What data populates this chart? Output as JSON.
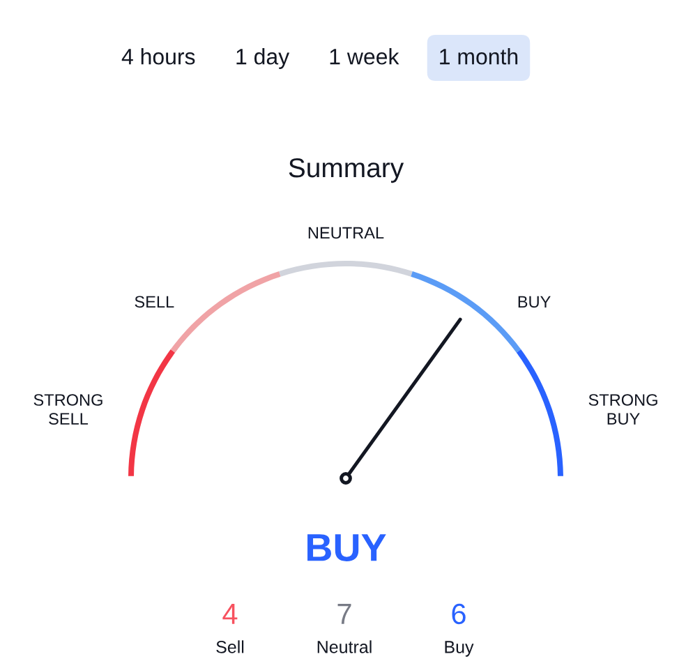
{
  "chart_data": [
    {
      "type": "other",
      "categories": [
        "4 hours",
        "1 day",
        "1 week",
        "1 month"
      ],
      "colors": [
        null,
        null,
        null,
        "#dbe6fa"
      ]
    },
    {
      "type": "donut",
      "title": "Summary",
      "categories": [
        "STRONG SELL",
        "SELL",
        "NEUTRAL",
        "BUY",
        "STRONG BUY"
      ],
      "values": [
        20,
        20,
        20,
        20,
        20
      ],
      "colors": [
        "#f23645",
        "#f0a3a6",
        "#d1d4dc",
        "#5b9cf6",
        "#2962ff"
      ],
      "needle": "BUY"
    },
    {
      "type": "other",
      "title": "BUY",
      "categories": [
        "Sell",
        "Neutral",
        "Buy"
      ],
      "values": [
        4,
        7,
        6
      ],
      "colors": [
        "#f7525f",
        "#787b86",
        "#2962ff"
      ],
      "data_labels": true
    }
  ]
}
